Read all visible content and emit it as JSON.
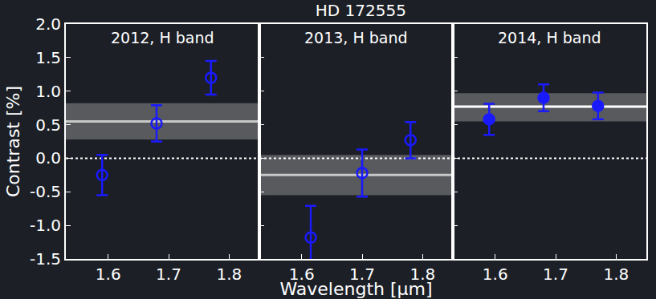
{
  "chart_data": {
    "type": "scatter",
    "title": "HD 172555",
    "x_label": "Wavelength [μm]",
    "y_label": "Contrast [%]",
    "color": "#1a1aff",
    "ylim": [
      -1.5,
      2.0
    ],
    "yticks": [
      {
        "value": -1.5,
        "label": "-1.5"
      },
      {
        "value": -1,
        "label": "-1.0"
      },
      {
        "value": -0.5,
        "label": "-0.5"
      },
      {
        "value": 0,
        "label": "0.0"
      },
      {
        "value": 0.5,
        "label": "0.5"
      },
      {
        "value": 1,
        "label": "1.0"
      },
      {
        "value": 1.5,
        "label": "1.5"
      },
      {
        "value": 2,
        "label": "2.0"
      }
    ],
    "xlim": [
      1.53,
      1.85
    ],
    "xticks": [
      1.6,
      1.7,
      1.8
    ],
    "hline": 0,
    "panels": [
      {
        "title": "2012, H band",
        "marker": "open",
        "x": [
          1.59,
          1.68,
          1.77
        ],
        "values": [
          -0.25,
          0.52,
          1.2
        ],
        "errors": [
          0.3,
          0.27,
          0.25
        ],
        "mean": 0.55,
        "band": [
          0.28,
          0.82
        ]
      },
      {
        "title": "2013, H band",
        "marker": "open",
        "x": [
          1.615,
          1.7,
          1.78
        ],
        "values": [
          -1.18,
          -0.22,
          0.27
        ],
        "errors": [
          0.47,
          0.35,
          0.27
        ],
        "mean": -0.25,
        "band": [
          -0.55,
          0.05
        ]
      },
      {
        "title": "2014, H band",
        "marker": "filled",
        "x": [
          1.59,
          1.68,
          1.77
        ],
        "values": [
          0.58,
          0.9,
          0.78
        ],
        "errors": [
          0.23,
          0.2,
          0.2
        ],
        "mean": 0.77,
        "band": [
          0.55,
          0.97
        ]
      }
    ]
  }
}
